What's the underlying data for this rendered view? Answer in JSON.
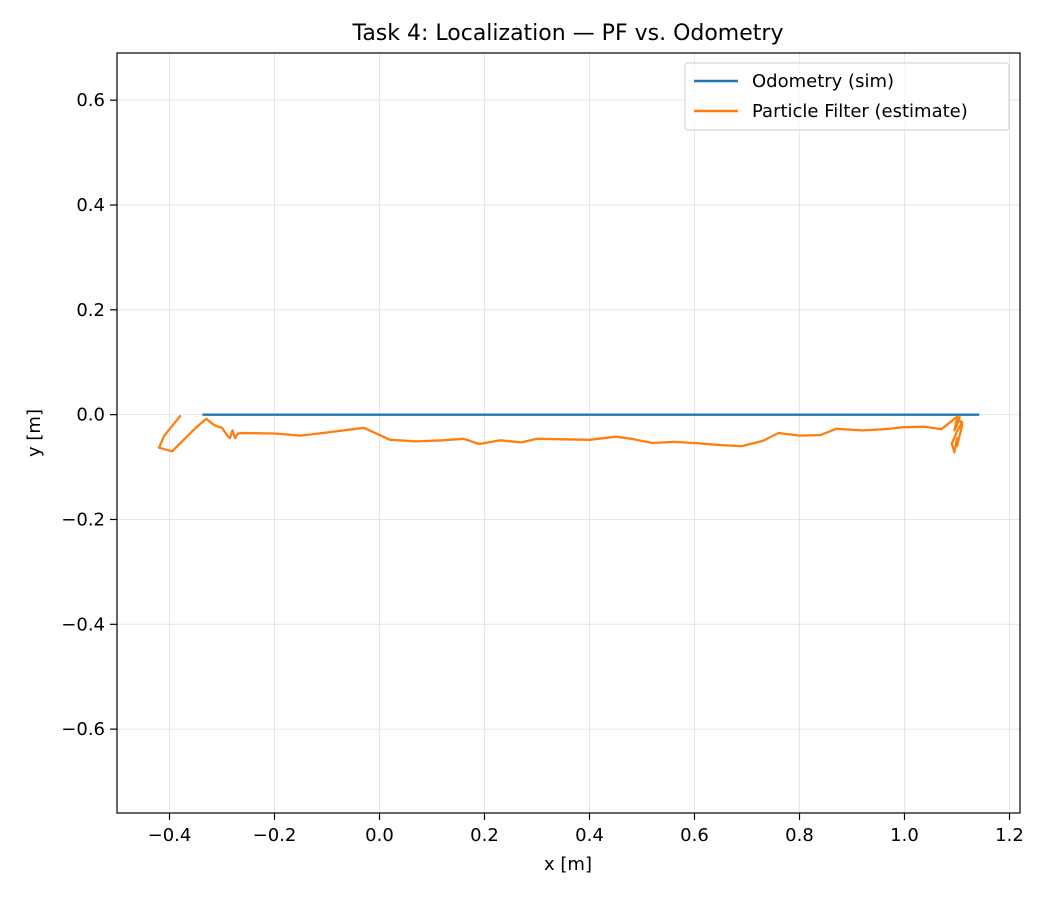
{
  "chart_data": {
    "type": "line",
    "title": "Task 4: Localization — PF vs. Odometry",
    "xlabel": "x [m]",
    "ylabel": "y [m]",
    "xlim": [
      -0.5,
      1.22
    ],
    "ylim": [
      -0.76,
      0.69
    ],
    "xticks": [
      -0.4,
      -0.2,
      0.0,
      0.2,
      0.4,
      0.6,
      0.8,
      1.0,
      1.2
    ],
    "xtick_labels": [
      "−0.4",
      "−0.2",
      "0.0",
      "0.2",
      "0.4",
      "0.6",
      "0.8",
      "1.0",
      "1.2"
    ],
    "yticks": [
      -0.6,
      -0.4,
      -0.2,
      0.0,
      0.2,
      0.4,
      0.6
    ],
    "ytick_labels": [
      "−0.6",
      "−0.4",
      "−0.2",
      "0.0",
      "0.2",
      "0.4",
      "0.6"
    ],
    "grid": true,
    "legend_position": "top-right",
    "series": [
      {
        "name": "Odometry (sim)",
        "color": "#1f77b4",
        "x": [
          -0.335,
          1.14
        ],
        "y": [
          0.0,
          0.0
        ]
      },
      {
        "name": "Particle Filter (estimate)",
        "color": "#ff7f0e",
        "x": [
          -0.38,
          -0.41,
          -0.42,
          -0.395,
          -0.35,
          -0.33,
          -0.315,
          -0.3,
          -0.29,
          -0.285,
          -0.28,
          -0.275,
          -0.27,
          -0.26,
          -0.2,
          -0.15,
          -0.1,
          -0.03,
          0.02,
          0.07,
          0.12,
          0.16,
          0.19,
          0.23,
          0.27,
          0.3,
          0.35,
          0.4,
          0.45,
          0.48,
          0.52,
          0.56,
          0.6,
          0.65,
          0.69,
          0.73,
          0.76,
          0.8,
          0.84,
          0.87,
          0.92,
          0.96,
          1.0,
          1.04,
          1.07,
          1.1,
          1.11,
          1.105,
          1.1,
          1.1,
          1.095,
          1.09,
          1.1,
          1.11,
          1.1,
          1.095,
          1.1,
          1.105
        ],
        "y": [
          -0.003,
          -0.04,
          -0.063,
          -0.07,
          -0.025,
          -0.008,
          -0.02,
          -0.025,
          -0.04,
          -0.045,
          -0.03,
          -0.045,
          -0.036,
          -0.035,
          -0.036,
          -0.04,
          -0.034,
          -0.025,
          -0.048,
          -0.051,
          -0.049,
          -0.046,
          -0.056,
          -0.049,
          -0.053,
          -0.046,
          -0.047,
          -0.048,
          -0.042,
          -0.046,
          -0.054,
          -0.052,
          -0.054,
          -0.058,
          -0.06,
          -0.05,
          -0.035,
          -0.04,
          -0.039,
          -0.027,
          -0.03,
          -0.028,
          -0.024,
          -0.023,
          -0.028,
          -0.004,
          -0.02,
          -0.04,
          -0.06,
          -0.045,
          -0.072,
          -0.055,
          -0.032,
          -0.015,
          -0.008,
          -0.03,
          -0.02,
          -0.005
        ]
      }
    ]
  }
}
